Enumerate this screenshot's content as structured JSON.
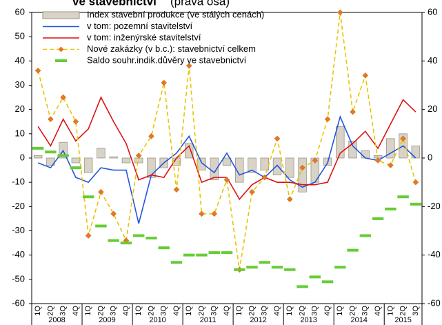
{
  "chart_data": {
    "type": "combo",
    "title": "ve stavebnictví",
    "title_note": "(pravá osa)",
    "categories": [
      "1Q",
      "2Q",
      "3Q",
      "4Q",
      "1Q",
      "2Q",
      "3Q",
      "4Q",
      "1Q",
      "2Q",
      "3Q",
      "4Q",
      "1Q",
      "2Q",
      "3Q",
      "4Q",
      "1Q",
      "2Q",
      "3Q",
      "4Q",
      "1Q",
      "2Q",
      "3Q",
      "4Q",
      "1Q",
      "2Q",
      "3Q",
      "4Q",
      "1Q",
      "2Q",
      "3Q"
    ],
    "years": [
      "2008",
      "2009",
      "2010",
      "2011",
      "2012",
      "2013",
      "2014",
      "2015"
    ],
    "ylim": [
      -60,
      60
    ],
    "yticks": [
      -60,
      -50,
      -40,
      -30,
      -20,
      -10,
      0,
      10,
      20,
      30,
      40,
      50,
      60
    ],
    "y2lim": [
      -60,
      60
    ],
    "y2ticks": [
      -60,
      -40,
      -20,
      0,
      20,
      40,
      60
    ],
    "series": [
      {
        "name": "Index stavební produkce (ve stálých cenách)",
        "kind": "bar",
        "color": "#d8d3c6",
        "values": [
          1,
          -3,
          6.5,
          -2,
          -6,
          4,
          0.5,
          -2,
          -2,
          -8,
          -4,
          -3,
          6,
          -5,
          -9,
          -3,
          -10,
          -6,
          -5,
          -7,
          -8,
          -14,
          -10,
          -3,
          13,
          7,
          3,
          1,
          8,
          10,
          5
        ]
      },
      {
        "name": "v tom: pozemní stavitelství",
        "kind": "line",
        "color": "#2255dd",
        "values": [
          -2,
          -4,
          3,
          -8,
          -10,
          -4,
          -5,
          -5,
          -27,
          -7,
          -2,
          2,
          9,
          -2,
          -6,
          2,
          -7,
          -5,
          -8,
          -3,
          -9,
          -12,
          -10,
          -2,
          17,
          5,
          0,
          -1,
          2,
          5,
          0
        ]
      },
      {
        "name": "v tom: inženýrské stavitelství",
        "kind": "line",
        "color": "#dd1111",
        "values": [
          13,
          5,
          16,
          7,
          12,
          25,
          15,
          6,
          -9,
          -7,
          -8,
          0,
          5,
          -10,
          -8,
          -8,
          -17,
          -11,
          -8,
          -10,
          -10,
          -11,
          -11,
          -10,
          2,
          6,
          11,
          4,
          14,
          24,
          19
        ]
      },
      {
        "name": "Nové zakázky (v b.c.): stavebnictví celkem",
        "kind": "dashed",
        "color": "#e8c400",
        "marker_color": "#e87722",
        "values": [
          36,
          16,
          25,
          15,
          -32,
          -14,
          -23,
          -34,
          1,
          9,
          31,
          -13,
          38,
          -23,
          -23,
          -9,
          -46,
          -14,
          -8,
          8,
          -17,
          -4,
          -1,
          16,
          60,
          19,
          34,
          -1,
          -3,
          8,
          -10
        ]
      },
      {
        "name": "Saldo souhr.indik.důvěry ve stavebnictví",
        "kind": "dash-marker",
        "color": "#66cc33",
        "axis": "y2",
        "values": [
          4,
          2.5,
          1,
          -4,
          -16,
          -28,
          -34,
          -35,
          -32,
          -33,
          -37,
          -43,
          -40,
          -40,
          -39,
          -39,
          -46,
          -45,
          -43,
          -45,
          -46,
          -53,
          -49,
          -51,
          -45,
          -38,
          -32,
          -25,
          -21,
          -16,
          -19
        ]
      }
    ]
  }
}
